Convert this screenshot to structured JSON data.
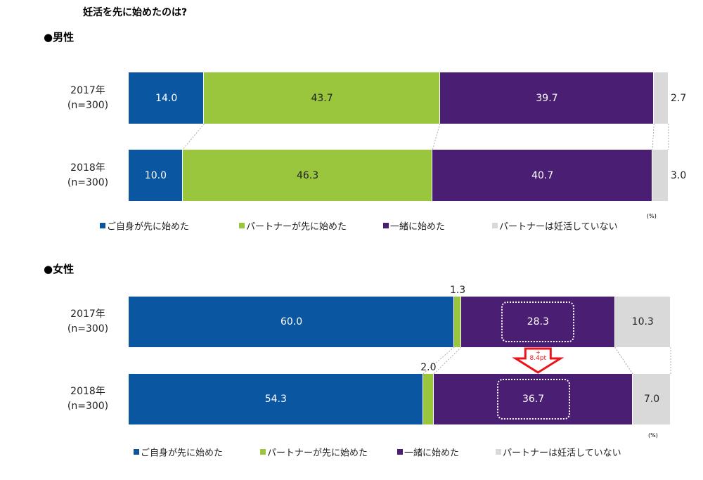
{
  "title": "妊活を先に始めたのは?",
  "chart_data": [
    {
      "type": "stacked-bar",
      "title": "●男性",
      "unit_label": "(%)",
      "categories": [
        "2017年\n(n=300)",
        "2018年\n(n=300)"
      ],
      "series": [
        {
          "name": "ご自身が先に始めた",
          "color": "#0b56a0",
          "label_color": "#ffffff",
          "values": [
            14.0,
            10.0
          ],
          "value_labels": [
            "14.0",
            "10.0"
          ]
        },
        {
          "name": "パートナーが先に始めた",
          "color": "#9ac63d",
          "label_color": "#222222",
          "values": [
            43.7,
            46.3
          ],
          "value_labels": [
            "43.7",
            "46.3"
          ]
        },
        {
          "name": "一緒に始めた",
          "color": "#4a1e72",
          "label_color": "#ffffff",
          "values": [
            39.7,
            40.7
          ],
          "value_labels": [
            "39.7",
            "40.7"
          ]
        },
        {
          "name": "パートナーは妊活していない",
          "color": "#d9d9d9",
          "label_color": "#222222",
          "values": [
            2.7,
            3.0
          ],
          "value_labels": [
            "2.7",
            "3.0"
          ]
        }
      ]
    },
    {
      "type": "stacked-bar",
      "title": "●女性",
      "unit_label": "(%)",
      "categories": [
        "2017年\n(n=300)",
        "2018年\n(n=300)"
      ],
      "series": [
        {
          "name": "ご自身が先に始めた",
          "color": "#0b56a0",
          "label_color": "#ffffff",
          "values": [
            60.0,
            54.3
          ],
          "value_labels": [
            "60.0",
            "54.3"
          ]
        },
        {
          "name": "パートナーが先に始めた",
          "color": "#9ac63d",
          "label_color": "#222222",
          "values": [
            1.3,
            2.0
          ],
          "value_labels": [
            "1.3",
            "2.0"
          ]
        },
        {
          "name": "一緒に始めた",
          "color": "#4a1e72",
          "label_color": "#ffffff",
          "values": [
            28.3,
            36.7
          ],
          "value_labels": [
            "28.3",
            "36.7"
          ]
        },
        {
          "name": "パートナーは妊活していない",
          "color": "#d9d9d9",
          "label_color": "#222222",
          "values": [
            10.3,
            7.0
          ],
          "value_labels": [
            "10.3",
            "7.0"
          ]
        }
      ],
      "highlight_series": 2,
      "annotation": {
        "sign": "+",
        "text": "8.4pt",
        "color": "#e8161b"
      }
    }
  ]
}
